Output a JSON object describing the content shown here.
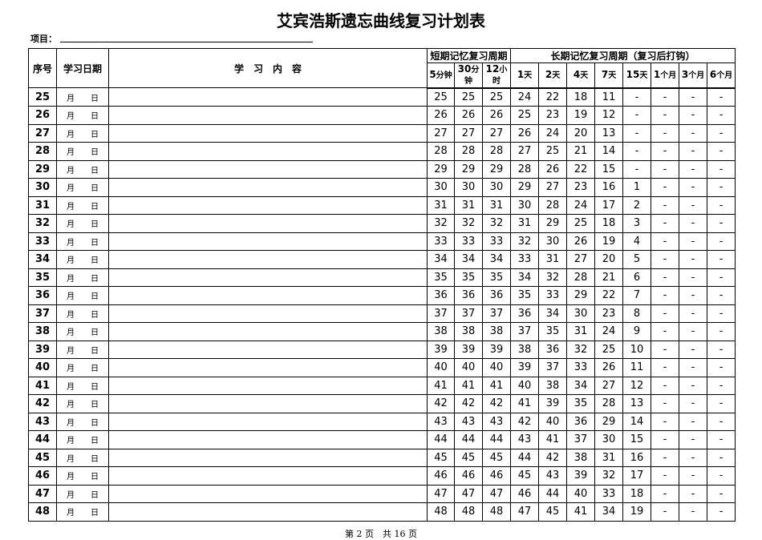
{
  "title": "艾宾浩斯遗忘曲线复习计划表",
  "project_label": "项目：",
  "headers": {
    "index": "序号",
    "date": "学习日期",
    "content": "学　习　内　容",
    "short_term": "短期记忆复习周期",
    "long_term": "长期记忆复习周期（复习后打钩）",
    "periods": [
      [
        "5",
        "分钟"
      ],
      [
        "30",
        "分钟"
      ],
      [
        "12",
        "小时"
      ],
      [
        "1",
        "天"
      ],
      [
        "2",
        "天"
      ],
      [
        "4",
        "天"
      ],
      [
        "7",
        "天"
      ],
      [
        "15",
        "天"
      ],
      [
        "1",
        "个月"
      ],
      [
        "3",
        "个月"
      ],
      [
        "6",
        "个月"
      ]
    ]
  },
  "date_month": "月",
  "date_day": "日",
  "rows": [
    [
      25,
      25,
      25,
      25,
      24,
      22,
      18,
      11,
      "-",
      "-",
      "-",
      "-"
    ],
    [
      26,
      26,
      26,
      26,
      25,
      23,
      19,
      12,
      "-",
      "-",
      "-",
      "-"
    ],
    [
      27,
      27,
      27,
      27,
      26,
      24,
      20,
      13,
      "-",
      "-",
      "-",
      "-"
    ],
    [
      28,
      28,
      28,
      28,
      27,
      25,
      21,
      14,
      "-",
      "-",
      "-",
      "-"
    ],
    [
      29,
      29,
      29,
      29,
      28,
      26,
      22,
      15,
      "-",
      "-",
      "-",
      "-"
    ],
    [
      30,
      30,
      30,
      30,
      29,
      27,
      23,
      16,
      1,
      "-",
      "-",
      "-"
    ],
    [
      31,
      31,
      31,
      31,
      30,
      28,
      24,
      17,
      2,
      "-",
      "-",
      "-"
    ],
    [
      32,
      32,
      32,
      32,
      31,
      29,
      25,
      18,
      3,
      "-",
      "-",
      "-"
    ],
    [
      33,
      33,
      33,
      33,
      32,
      30,
      26,
      19,
      4,
      "-",
      "-",
      "-"
    ],
    [
      34,
      34,
      34,
      34,
      33,
      31,
      27,
      20,
      5,
      "-",
      "-",
      "-"
    ],
    [
      35,
      35,
      35,
      35,
      34,
      32,
      28,
      21,
      6,
      "-",
      "-",
      "-"
    ],
    [
      36,
      36,
      36,
      36,
      35,
      33,
      29,
      22,
      7,
      "-",
      "-",
      "-"
    ],
    [
      37,
      37,
      37,
      37,
      36,
      34,
      30,
      23,
      8,
      "-",
      "-",
      "-"
    ],
    [
      38,
      38,
      38,
      38,
      37,
      35,
      31,
      24,
      9,
      "-",
      "-",
      "-"
    ],
    [
      39,
      39,
      39,
      39,
      38,
      36,
      32,
      25,
      10,
      "-",
      "-",
      "-"
    ],
    [
      40,
      40,
      40,
      40,
      39,
      37,
      33,
      26,
      11,
      "-",
      "-",
      "-"
    ],
    [
      41,
      41,
      41,
      41,
      40,
      38,
      34,
      27,
      12,
      "-",
      "-",
      "-"
    ],
    [
      42,
      42,
      42,
      42,
      41,
      39,
      35,
      28,
      13,
      "-",
      "-",
      "-"
    ],
    [
      43,
      43,
      43,
      43,
      42,
      40,
      36,
      29,
      14,
      "-",
      "-",
      "-"
    ],
    [
      44,
      44,
      44,
      44,
      43,
      41,
      37,
      30,
      15,
      "-",
      "-",
      "-"
    ],
    [
      45,
      45,
      45,
      45,
      44,
      42,
      38,
      31,
      16,
      "-",
      "-",
      "-"
    ],
    [
      46,
      46,
      46,
      46,
      45,
      43,
      39,
      32,
      17,
      "-",
      "-",
      "-"
    ],
    [
      47,
      47,
      47,
      47,
      46,
      44,
      40,
      33,
      18,
      "-",
      "-",
      "-"
    ],
    [
      48,
      48,
      48,
      48,
      47,
      45,
      41,
      34,
      19,
      "-",
      "-",
      "-"
    ]
  ],
  "footer": "第 2 页　共 16 页"
}
